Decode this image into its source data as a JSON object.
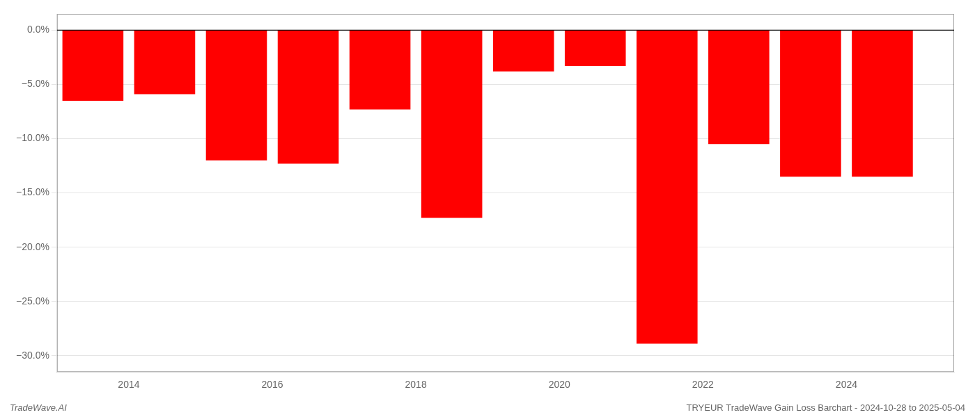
{
  "chart_data": {
    "type": "bar",
    "x": [
      2013.5,
      2014.5,
      2015.5,
      2016.5,
      2017.5,
      2018.5,
      2019.5,
      2020.5,
      2021.5,
      2022.5,
      2023.5,
      2024.5
    ],
    "values": [
      -0.065,
      -0.059,
      -0.12,
      -0.123,
      -0.073,
      -0.173,
      -0.038,
      -0.033,
      -0.289,
      -0.105,
      -0.135,
      -0.135
    ],
    "color": "#ff0000",
    "xlim": [
      2013.0,
      2025.5
    ],
    "xticks": [
      2014,
      2016,
      2018,
      2020,
      2022,
      2024
    ],
    "ylim": [
      -0.315,
      0.015
    ],
    "yticks": [
      {
        "value": 0.0,
        "label": "0.0%"
      },
      {
        "value": -0.05,
        "label": "−5.0%"
      },
      {
        "value": -0.1,
        "label": "−10.0%"
      },
      {
        "value": -0.15,
        "label": "−15.0%"
      },
      {
        "value": -0.2,
        "label": "−20.0%"
      },
      {
        "value": -0.25,
        "label": "−25.0%"
      },
      {
        "value": -0.3,
        "label": "−30.0%"
      }
    ],
    "grid": "y",
    "legend": false,
    "annotations": [
      "TradeWave.AI",
      "TRYEUR TradeWave Gain Loss Barchart - 2024-10-28 to 2025-05-04"
    ]
  }
}
